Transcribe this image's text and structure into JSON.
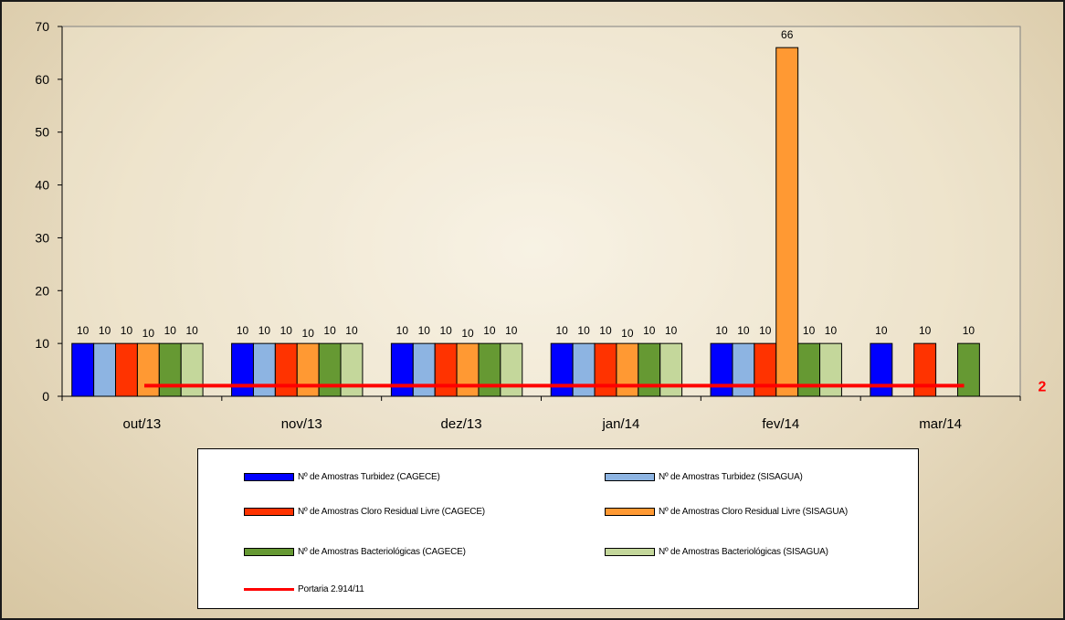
{
  "chart_data": {
    "type": "bar",
    "categories": [
      "out/13",
      "nov/13",
      "dez/13",
      "jan/14",
      "fev/14",
      "mar/14"
    ],
    "series": [
      {
        "name": "Nº de Amostras Turbidez (CAGECE)",
        "color": "#0000ff",
        "values": [
          10,
          10,
          10,
          10,
          10,
          10
        ]
      },
      {
        "name": "Nº de Amostras Turbidez (SISAGUA)",
        "color": "#8db4e2",
        "values": [
          10,
          10,
          10,
          10,
          10,
          null
        ]
      },
      {
        "name": "Nº de Amostras Cloro Residual Livre (CAGECE)",
        "color": "#ff3300",
        "values": [
          10,
          10,
          10,
          10,
          10,
          10
        ]
      },
      {
        "name": "Nº de Amostras Cloro Residual Livre (SISAGUA)",
        "color": "#ff9933",
        "values": [
          10,
          10,
          10,
          10,
          66,
          null
        ]
      },
      {
        "name": "Nº de Amostras Bacteriológicas (CAGECE)",
        "color": "#669933",
        "values": [
          10,
          10,
          10,
          10,
          10,
          10
        ]
      },
      {
        "name": "Nº de Amostras Bacteriológicas (SISAGUA)",
        "color": "#c4d79b",
        "values": [
          10,
          10,
          10,
          10,
          10,
          null
        ]
      }
    ],
    "reference_line": {
      "name": "Portaria 2.914/11",
      "value": 2,
      "label": "2",
      "color": "#ff0000"
    },
    "yticks": [
      "0",
      "10",
      "20",
      "30",
      "40",
      "50",
      "60",
      "70"
    ],
    "ylim": [
      0,
      70
    ],
    "grid": false,
    "legend_position": "bottom"
  }
}
